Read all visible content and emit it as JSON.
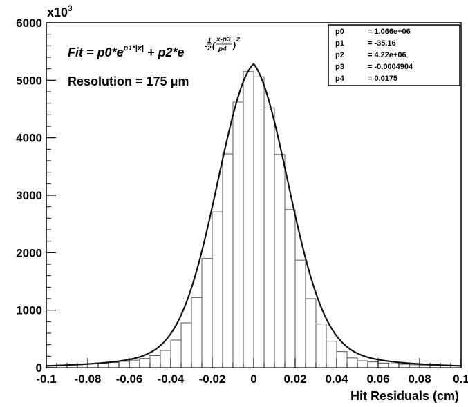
{
  "chart_data": {
    "type": "bar",
    "style": "step-histogram with fit curve",
    "title": "",
    "xlabel": "Hit Residuals (cm)",
    "ylabel": "",
    "y_multiplier_label": "x10",
    "y_multiplier_exp": "3",
    "xlim": [
      -0.1,
      0.1
    ],
    "ylim": [
      0,
      6000
    ],
    "x_tick_values": [
      -0.1,
      -0.08,
      -0.06,
      -0.04,
      -0.02,
      0,
      0.02,
      0.04,
      0.06,
      0.08,
      0.1
    ],
    "x_tick_labels": [
      "-0.1",
      "-0.08",
      "-0.06",
      "-0.04",
      "-0.02",
      "0",
      "0.02",
      "0.04",
      "0.06",
      "0.08",
      "0.1"
    ],
    "y_tick_values": [
      0,
      1000,
      2000,
      3000,
      4000,
      5000,
      6000
    ],
    "y_tick_labels": [
      "0",
      "1000",
      "2000",
      "3000",
      "4000",
      "5000",
      "6000"
    ],
    "grid": false,
    "bin_width": 0.005,
    "bin_lower_edges": [
      -0.1,
      -0.095,
      -0.09,
      -0.085,
      -0.08,
      -0.075,
      -0.07,
      -0.065,
      -0.06,
      -0.055,
      -0.05,
      -0.045,
      -0.04,
      -0.035,
      -0.03,
      -0.025,
      -0.02,
      -0.015,
      -0.01,
      -0.005,
      0,
      0.005,
      0.01,
      0.015,
      0.02,
      0.025,
      0.03,
      0.035,
      0.04,
      0.045,
      0.05,
      0.055,
      0.06,
      0.065,
      0.07,
      0.075,
      0.08,
      0.085,
      0.09,
      0.095
    ],
    "bin_values": [
      40,
      45,
      55,
      60,
      70,
      80,
      90,
      110,
      130,
      160,
      210,
      300,
      480,
      780,
      1220,
      1900,
      2710,
      3720,
      4620,
      5150,
      5060,
      4520,
      3710,
      2750,
      1870,
      1200,
      760,
      460,
      280,
      170,
      120,
      100,
      80,
      70,
      60,
      50,
      45,
      40,
      35,
      30
    ],
    "fit": {
      "label_prefix": "Fit = ",
      "formula_text": "p0*e^(p1*|x|) + p2*e^(-1/2((x-p3)/p4)^2)",
      "p0": 1066000,
      "p1": -35.16,
      "p2": 4220000,
      "p3": -0.0004904,
      "p4": 0.0175
    },
    "annotations": [
      "Resolution = 175 μm"
    ],
    "stats_box": {
      "placement": "top-right",
      "rows": [
        {
          "name": "p0",
          "value": "= 1.066e+06"
        },
        {
          "name": "p1",
          "value": "= -35.16"
        },
        {
          "name": "p2",
          "value": "= 4.22e+06"
        },
        {
          "name": "p3",
          "value": "= -0.0004904"
        },
        {
          "name": "p4",
          "value": "= 0.0175"
        }
      ]
    },
    "colors": {
      "background": "#ffffff",
      "histogram": "#555555",
      "fit_line": "#111111",
      "axis": "#000000"
    }
  }
}
